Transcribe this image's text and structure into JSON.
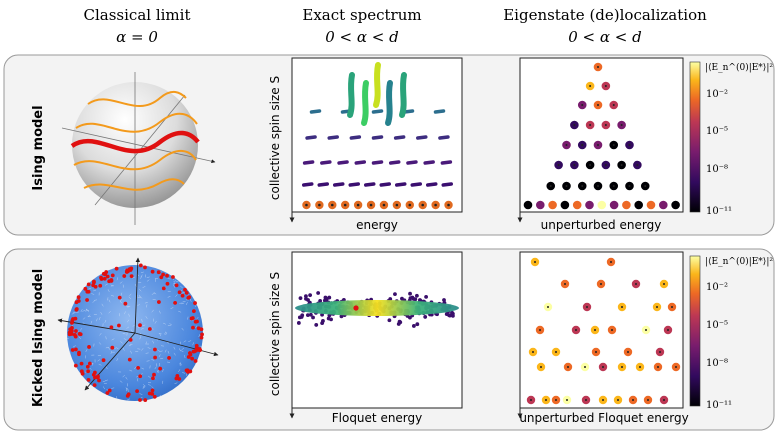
{
  "columns": {
    "classical": {
      "title": "Classical limit",
      "condition": "α = 0"
    },
    "spectrum": {
      "title": "Exact spectrum",
      "condition": "0 < α < d"
    },
    "localization": {
      "title": "Eigenstate (de)localization",
      "condition": "0 < α < d"
    }
  },
  "rows": [
    {
      "label": "Ising model",
      "spectrum_ylabel": "collective spin size S",
      "spectrum_xlabel": "energy",
      "loc_xlabel": "unperturbed energy",
      "colorbar_label": "|⟨E_n^(0)|E*⟩|²",
      "colorbar_ticks": [
        "10⁻²",
        "10⁻⁵",
        "10⁻⁸",
        "10⁻¹¹"
      ]
    },
    {
      "label": "Kicked Ising model",
      "spectrum_ylabel": "collective spin size S",
      "spectrum_xlabel": "Floquet energy",
      "loc_xlabel": "unperturbed Floquet energy",
      "colorbar_label": "|⟨E_n^(0)|E*⟩|²",
      "colorbar_ticks": [
        "10⁻²",
        "10⁻⁵",
        "10⁻⁸",
        "10⁻¹¹"
      ]
    }
  ],
  "colors": {
    "panel_bg": "#f3f3f3",
    "panel_border": "#9a9a9a",
    "trajectory_red": "#e01010",
    "trajectory_orange": "#f39a1c",
    "sphere_blue": "#3a7fd8"
  }
}
